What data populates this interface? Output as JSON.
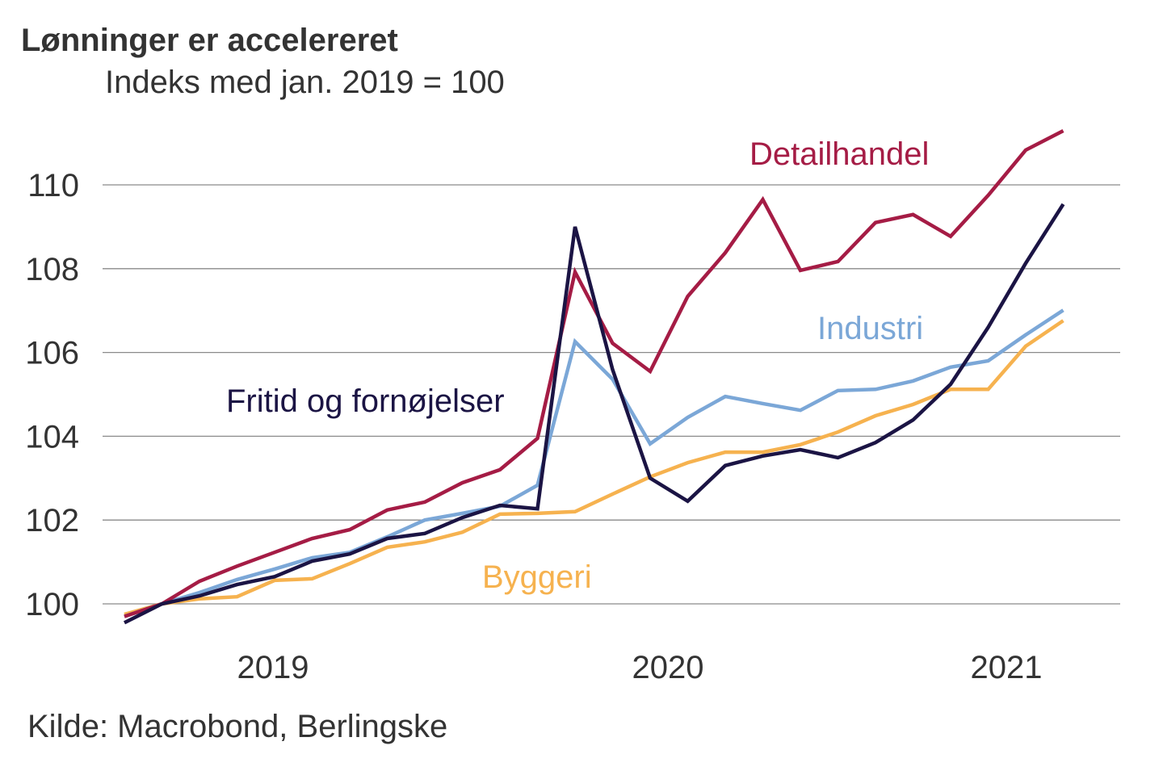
{
  "chart_data": {
    "type": "line",
    "title": "Lønninger er accelereret",
    "subtitle": "Indeks med jan. 2019 = 100",
    "source": "Kilde: Macrobond, Berlingske",
    "xlabel": "",
    "ylabel": "",
    "x": [
      "2018-12",
      "2019-01",
      "2019-02",
      "2019-03",
      "2019-04",
      "2019-05",
      "2019-06",
      "2019-07",
      "2019-08",
      "2019-09",
      "2019-10",
      "2019-11",
      "2019-12",
      "2020-01",
      "2020-02",
      "2020-03",
      "2020-04",
      "2020-05",
      "2020-06",
      "2020-07",
      "2020-08",
      "2020-09",
      "2020-10",
      "2020-11",
      "2020-12",
      "2021-01"
    ],
    "x_tick_labels": [
      "2019",
      "2020",
      "2021"
    ],
    "ylim": [
      99,
      112.5
    ],
    "y_ticks": [
      100,
      102,
      104,
      106,
      108,
      110
    ],
    "grid": "horizontal",
    "legend": "inline labels",
    "series": [
      {
        "name": "Detailhandel",
        "color": "#a51c45",
        "values": [
          99.7,
          100,
          100.54,
          100.9,
          101.23,
          101.56,
          101.77,
          102.24,
          102.43,
          102.89,
          103.2,
          103.95,
          107.92,
          106.22,
          105.55,
          107.34,
          108.38,
          109.65,
          107.96,
          108.17,
          109.1,
          109.29,
          108.77,
          109.75,
          110.83,
          111.29
        ]
      },
      {
        "name": "Fritid og fornøjelser",
        "color": "#1b1444",
        "values": [
          99.55,
          100,
          100.19,
          100.46,
          100.65,
          101.02,
          101.19,
          101.56,
          101.68,
          102.06,
          102.35,
          102.27,
          109.0,
          105.59,
          103.0,
          102.45,
          103.3,
          103.53,
          103.68,
          103.49,
          103.85,
          104.39,
          105.24,
          106.6,
          108.13,
          109.54
        ]
      },
      {
        "name": "Industri",
        "color": "#7ba7d7",
        "values": [
          99.7,
          100,
          100.27,
          100.58,
          100.83,
          101.1,
          101.23,
          101.6,
          102.0,
          102.16,
          102.33,
          102.83,
          106.26,
          105.36,
          103.82,
          104.45,
          104.95,
          104.78,
          104.62,
          105.09,
          105.12,
          105.32,
          105.65,
          105.8,
          106.42,
          107.01
        ]
      },
      {
        "name": "Byggeri",
        "color": "#f6b24f",
        "values": [
          99.75,
          100,
          100.12,
          100.17,
          100.56,
          100.6,
          100.96,
          101.35,
          101.48,
          101.71,
          102.14,
          102.16,
          102.2,
          102.62,
          103.03,
          103.37,
          103.62,
          103.62,
          103.8,
          104.1,
          104.49,
          104.76,
          105.12,
          105.12,
          106.15,
          106.76
        ]
      }
    ]
  }
}
